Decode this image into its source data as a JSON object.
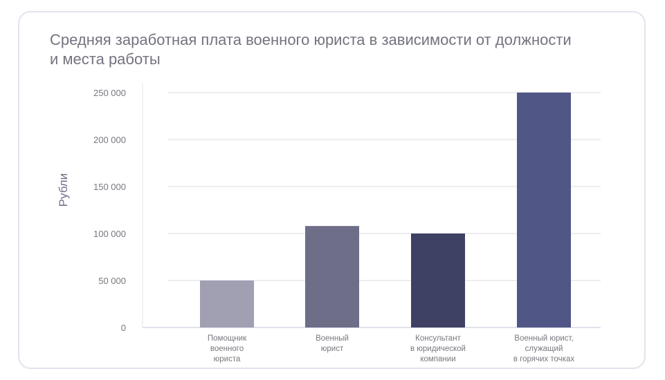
{
  "chart_data": {
    "type": "bar",
    "title": "Средняя заработная плата военного юриста в зависимости от должности и места работы",
    "xlabel": "",
    "ylabel": "Рубли",
    "ylim": [
      0,
      250000
    ],
    "yticks": [
      0,
      50000,
      100000,
      150000,
      200000,
      250000
    ],
    "ytick_labels": [
      "0",
      "50 000",
      "100 000",
      "150 000",
      "200 000",
      "250 000"
    ],
    "grid": true,
    "categories": [
      [
        "Помощник",
        "военного",
        "юриста"
      ],
      [
        "Военный",
        "юрист"
      ],
      [
        "Консультант",
        "в юридической",
        "компании"
      ],
      [
        "Военный юрист,",
        "служащий",
        "в горячих точках"
      ]
    ],
    "values": [
      50000,
      108000,
      100000,
      250000
    ],
    "colors": [
      "#a0a0b2",
      "#6e6e89",
      "#3e4064",
      "#505686"
    ]
  }
}
